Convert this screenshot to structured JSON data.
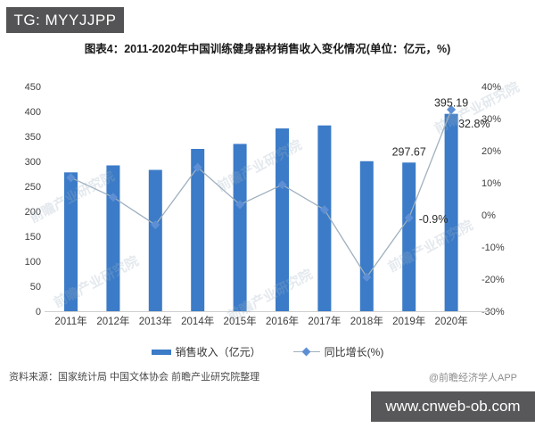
{
  "header": {
    "badge": "TG: MYYJJPP"
  },
  "chart": {
    "title": "图表4：2011-2020年中国训练健身器材销售收入变化情况(单位：亿元，%)"
  },
  "chart_data": {
    "type": "bar",
    "subtype": "bar+line combo, dual axis",
    "title": "图表4：2011-2020年中国训练健身器材销售收入变化情况(单位：亿元，%)",
    "categories": [
      "2011年",
      "2012年",
      "2013年",
      "2014年",
      "2015年",
      "2016年",
      "2017年",
      "2018年",
      "2019年",
      "2020年"
    ],
    "series": [
      {
        "name": "销售收入（亿元）",
        "type": "bar",
        "axis": "left",
        "color": "#3B7BC7",
        "values": [
          278,
          292,
          283,
          325,
          335,
          366,
          372,
          300.4,
          297.67,
          395.19
        ]
      },
      {
        "name": "同比增长(%)",
        "type": "line",
        "axis": "right",
        "color": "#9FB0BE",
        "marker": "diamond",
        "marker_color": "#5E8FD5",
        "values": [
          11.6,
          5.5,
          -3.1,
          14.8,
          3.2,
          9.4,
          1.6,
          -19.4,
          -0.9,
          32.8
        ]
      }
    ],
    "left_axis": {
      "min": 0,
      "max": 450,
      "step": 50,
      "ticks": [
        "0",
        "50",
        "100",
        "150",
        "200",
        "250",
        "300",
        "350",
        "400",
        "450"
      ]
    },
    "right_axis": {
      "min": -30,
      "max": 40,
      "step": 10,
      "ticks": [
        "-30%",
        "-20%",
        "-10%",
        "0%",
        "10%",
        "20%",
        "30%",
        "40%"
      ]
    },
    "point_labels": [
      {
        "series": 0,
        "index": 8,
        "text": "297.67",
        "placement": "above"
      },
      {
        "series": 0,
        "index": 9,
        "text": "395.19",
        "placement": "above"
      },
      {
        "series": 1,
        "index": 8,
        "text": "-0.9%",
        "placement": "right"
      },
      {
        "series": 1,
        "index": 9,
        "text": "32.8%",
        "placement": "right-top"
      }
    ],
    "legend": [
      "销售收入（亿元）",
      "同比增长(%)"
    ],
    "grid": false,
    "legend_position": "bottom"
  },
  "watermark": {
    "text": "前瞻产业研究院"
  },
  "footer": {
    "source": "资料来源：国家统计局 中国文体协会 前瞻产业研究院整理",
    "credit": "@前瞻经济学人APP",
    "site_badge": "www.cnweb-ob.com"
  }
}
